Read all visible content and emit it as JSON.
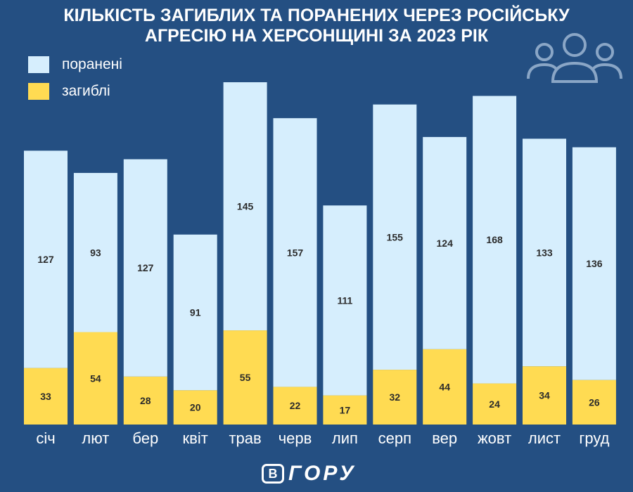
{
  "chart_data": {
    "type": "bar",
    "stacked": true,
    "title_lines": [
      "КІЛЬКІСТЬ ЗАГИБЛИХ ТА ПОРАНЕНИХ ЧЕРЕЗ РОСІЙСЬКУ",
      "АГРЕСІЮ НА ХЕРСОНЩИНІ ЗА 2023 РІК"
    ],
    "categories": [
      "січ",
      "лют",
      "бер",
      "квіт",
      "трав",
      "черв",
      "лип",
      "серп",
      "вер",
      "жовт",
      "лист",
      "груд"
    ],
    "series": [
      {
        "name": "загиблі",
        "color": "#ffdb52",
        "values": [
          33,
          54,
          28,
          20,
          55,
          22,
          17,
          32,
          44,
          24,
          34,
          26
        ]
      },
      {
        "name": "поранені",
        "color": "#d6eefd",
        "values": [
          127,
          93,
          127,
          91,
          145,
          157,
          111,
          155,
          124,
          168,
          133,
          136
        ]
      }
    ],
    "legend": [
      {
        "label": "поранені",
        "color": "#d6eefd"
      },
      {
        "label": "загиблі",
        "color": "#ffdb52"
      }
    ],
    "legend_position": "top-left",
    "ylim": [
      0,
      210
    ],
    "grid": false,
    "xlabel": "",
    "ylabel": ""
  },
  "branding": {
    "logo_badge": "В",
    "logo_text": "ГОРУ",
    "icon": "people-group-icon"
  },
  "colors": {
    "background": "#244f82",
    "text": "#ffffff",
    "value_label": "#2b2b2b"
  }
}
